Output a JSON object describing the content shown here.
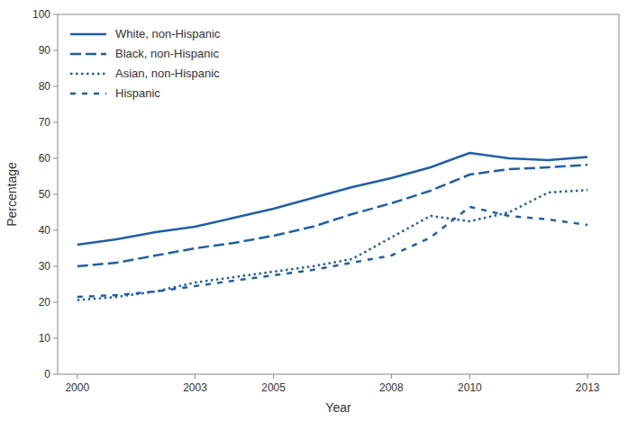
{
  "chart_data": {
    "type": "line",
    "xlabel": "Year",
    "ylabel": "Percentage",
    "x": [
      2000,
      2001,
      2002,
      2003,
      2004,
      2005,
      2006,
      2007,
      2008,
      2009,
      2010,
      2011,
      2012,
      2013
    ],
    "xlim": [
      1999.5,
      2013.8
    ],
    "ylim": [
      0,
      100
    ],
    "xticks": [
      2000,
      2003,
      2005,
      2008,
      2010,
      2013
    ],
    "yticks": [
      0,
      10,
      20,
      30,
      40,
      50,
      60,
      70,
      80,
      90,
      100
    ],
    "color": "#1F5FA6",
    "legend": "upper left",
    "grid": false,
    "series": [
      {
        "name": "White, non-Hispanic",
        "line_style": "solid",
        "values": [
          36.0,
          37.5,
          39.5,
          41.0,
          43.5,
          46.0,
          49.0,
          52.0,
          54.5,
          57.5,
          61.5,
          60.0,
          59.5,
          60.4
        ]
      },
      {
        "name": "Black, non-Hispanic",
        "line_style": "dashed",
        "values": [
          30.0,
          31.0,
          33.0,
          35.0,
          36.5,
          38.5,
          41.0,
          44.5,
          47.5,
          51.0,
          55.5,
          57.0,
          57.5,
          58.2
        ]
      },
      {
        "name": "Asian, non-Hispanic",
        "line_style": "dotted",
        "values": [
          20.6,
          21.5,
          23.0,
          25.5,
          27.0,
          28.5,
          30.0,
          32.0,
          38.0,
          44.0,
          42.5,
          45.0,
          50.5,
          51.2
        ]
      },
      {
        "name": "Hispanic",
        "line_style": "loosedash",
        "values": [
          21.5,
          22.0,
          23.0,
          24.5,
          26.0,
          27.5,
          29.0,
          31.0,
          33.0,
          38.0,
          46.5,
          44.0,
          43.0,
          41.5
        ]
      }
    ]
  }
}
